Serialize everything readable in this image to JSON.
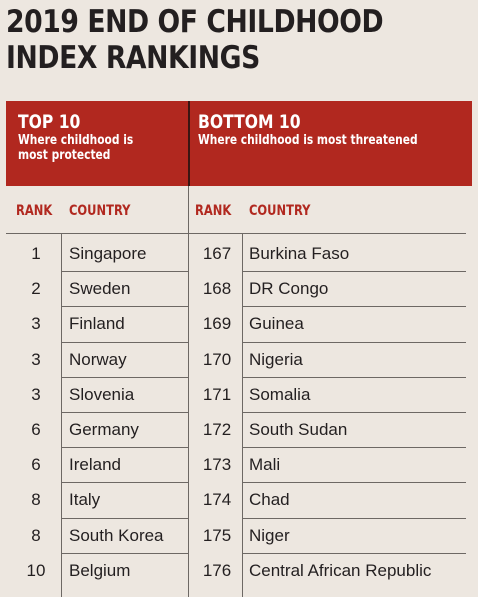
{
  "title": {
    "line1": "2019 END OF CHILDHOOD",
    "line2": "INDEX RANKINGS"
  },
  "header": {
    "top": {
      "heading": "TOP 10",
      "line1": "Where childhood is",
      "line2": "most protected"
    },
    "bottom": {
      "heading": "BOTTOM 10",
      "line1": "Where childhood is most threatened"
    }
  },
  "columns": {
    "rank": "RANK",
    "country": "COUNTRY"
  },
  "rows": [
    {
      "top_rank": "1",
      "top_country": "Singapore",
      "bottom_rank": "167",
      "bottom_country": "Burkina Faso"
    },
    {
      "top_rank": "2",
      "top_country": "Sweden",
      "bottom_rank": "168",
      "bottom_country": "DR Congo"
    },
    {
      "top_rank": "3",
      "top_country": "Finland",
      "bottom_rank": "169",
      "bottom_country": "Guinea"
    },
    {
      "top_rank": "3",
      "top_country": "Norway",
      "bottom_rank": "170",
      "bottom_country": "Nigeria"
    },
    {
      "top_rank": "3",
      "top_country": "Slovenia",
      "bottom_rank": "171",
      "bottom_country": "Somalia"
    },
    {
      "top_rank": "6",
      "top_country": "Germany",
      "bottom_rank": "172",
      "bottom_country": "South Sudan"
    },
    {
      "top_rank": "6",
      "top_country": "Ireland",
      "bottom_rank": "173",
      "bottom_country": "Mali"
    },
    {
      "top_rank": "8",
      "top_country": "Italy",
      "bottom_rank": "174",
      "bottom_country": "Chad"
    },
    {
      "top_rank": "8",
      "top_country": "South Korea",
      "bottom_rank": "175",
      "bottom_country": "Niger"
    },
    {
      "top_rank": "10",
      "top_country": "Belgium",
      "bottom_rank": "176",
      "bottom_country": "Central African Republic"
    }
  ],
  "colors": {
    "header_background": "#b1281f",
    "header_text": "#ffffff",
    "column_heading": "#b1281f",
    "page_background": "#ede7e0",
    "body_text": "#231f20"
  }
}
